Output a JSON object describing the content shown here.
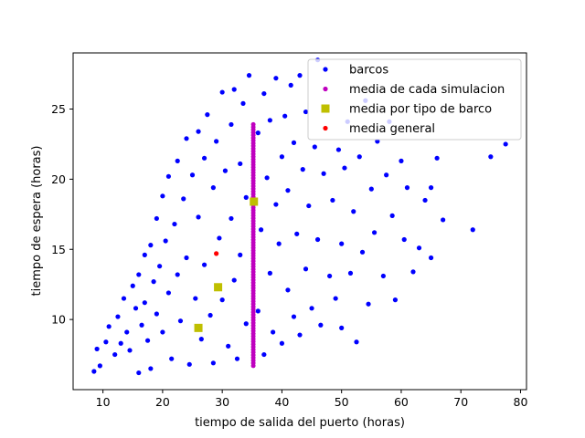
{
  "chart_data": {
    "type": "scatter",
    "title": "",
    "xlabel": "tiempo de salida del puerto (horas)",
    "ylabel": "tiempo de espera (horas)",
    "xlim": [
      5,
      81
    ],
    "ylim": [
      5,
      29
    ],
    "xticks": [
      10,
      20,
      30,
      40,
      50,
      60,
      70,
      80
    ],
    "yticks": [
      10,
      15,
      20,
      25
    ],
    "grid": false,
    "legend_position": "top-right",
    "legend": [
      {
        "label": "barcos",
        "marker": "dot",
        "color": "#0000ff"
      },
      {
        "label": "media de cada simulacion",
        "marker": "dot",
        "color": "#bf00bf"
      },
      {
        "label": "media por tipo de barco",
        "marker": "square",
        "color": "#bfbf00"
      },
      {
        "label": "media general",
        "marker": "dot",
        "color": "#ff0000"
      }
    ],
    "series": [
      {
        "name": "barcos",
        "color": "#0000ff",
        "note": "dense cloud of ~3000 points; representative sample below",
        "points": [
          [
            8.5,
            6.3
          ],
          [
            9,
            7.9
          ],
          [
            9.5,
            6.7
          ],
          [
            10.5,
            8.4
          ],
          [
            11,
            9.5
          ],
          [
            12,
            7.5
          ],
          [
            12.5,
            10.2
          ],
          [
            13,
            8.3
          ],
          [
            13.5,
            11.5
          ],
          [
            14,
            9.1
          ],
          [
            14.5,
            7.8
          ],
          [
            15,
            12.4
          ],
          [
            15.5,
            10.8
          ],
          [
            16,
            6.2
          ],
          [
            16,
            13.2
          ],
          [
            16.5,
            9.6
          ],
          [
            17,
            14.6
          ],
          [
            17,
            11.2
          ],
          [
            17.5,
            8.5
          ],
          [
            18,
            15.3
          ],
          [
            18,
            6.5
          ],
          [
            18.5,
            12.7
          ],
          [
            19,
            10.4
          ],
          [
            19,
            17.2
          ],
          [
            19.5,
            13.8
          ],
          [
            20,
            9.1
          ],
          [
            20,
            18.8
          ],
          [
            20.5,
            15.6
          ],
          [
            21,
            11.9
          ],
          [
            21,
            20.2
          ],
          [
            21.5,
            7.2
          ],
          [
            22,
            16.8
          ],
          [
            22.5,
            13.2
          ],
          [
            22.5,
            21.3
          ],
          [
            23,
            9.9
          ],
          [
            23.5,
            18.6
          ],
          [
            24,
            22.9
          ],
          [
            24,
            14.4
          ],
          [
            24.5,
            6.8
          ],
          [
            25,
            20.3
          ],
          [
            25.5,
            11.5
          ],
          [
            26,
            17.3
          ],
          [
            26,
            23.4
          ],
          [
            26.5,
            8.6
          ],
          [
            27,
            21.5
          ],
          [
            27,
            13.9
          ],
          [
            27.5,
            24.6
          ],
          [
            28,
            10.3
          ],
          [
            28.5,
            19.4
          ],
          [
            28.5,
            6.9
          ],
          [
            29,
            22.7
          ],
          [
            29.5,
            15.8
          ],
          [
            30,
            26.2
          ],
          [
            30,
            11.4
          ],
          [
            30.5,
            20.6
          ],
          [
            31,
            8.1
          ],
          [
            31.5,
            23.9
          ],
          [
            31.5,
            17.2
          ],
          [
            32,
            12.8
          ],
          [
            32,
            26.4
          ],
          [
            32.5,
            7.2
          ],
          [
            33,
            21.1
          ],
          [
            33,
            14.6
          ],
          [
            33.5,
            25.4
          ],
          [
            34,
            9.7
          ],
          [
            34,
            18.7
          ],
          [
            34.5,
            27.4
          ],
          [
            36,
            23.3
          ],
          [
            36,
            10.6
          ],
          [
            36.5,
            16.4
          ],
          [
            37,
            26.1
          ],
          [
            37,
            7.5
          ],
          [
            37.5,
            20.1
          ],
          [
            38,
            13.3
          ],
          [
            38,
            24.2
          ],
          [
            38.5,
            9.1
          ],
          [
            39,
            18.2
          ],
          [
            39,
            27.2
          ],
          [
            39.5,
            15.4
          ],
          [
            40,
            21.6
          ],
          [
            40,
            8.3
          ],
          [
            40.5,
            24.5
          ],
          [
            41,
            12.1
          ],
          [
            41,
            19.2
          ],
          [
            41.5,
            26.7
          ],
          [
            42,
            10.2
          ],
          [
            42,
            22.6
          ],
          [
            42.5,
            16.1
          ],
          [
            43,
            27.4
          ],
          [
            43,
            8.9
          ],
          [
            43.5,
            20.7
          ],
          [
            44,
            13.6
          ],
          [
            44,
            24.8
          ],
          [
            44.5,
            18.1
          ],
          [
            45,
            10.8
          ],
          [
            45.5,
            22.3
          ],
          [
            46,
            28.5
          ],
          [
            46,
            15.7
          ],
          [
            46.5,
            9.6
          ],
          [
            47,
            20.4
          ],
          [
            47.5,
            24.9
          ],
          [
            48,
            13.1
          ],
          [
            48.5,
            18.5
          ],
          [
            49,
            11.5
          ],
          [
            49.5,
            22.1
          ],
          [
            50,
            15.4
          ],
          [
            50,
            9.4
          ],
          [
            50.5,
            20.8
          ],
          [
            51,
            24.1
          ],
          [
            51.5,
            13.3
          ],
          [
            52,
            17.7
          ],
          [
            52.5,
            8.4
          ],
          [
            53,
            21.6
          ],
          [
            53.5,
            14.8
          ],
          [
            54,
            25.6
          ],
          [
            54.5,
            11.1
          ],
          [
            55,
            19.3
          ],
          [
            55.5,
            16.2
          ],
          [
            56,
            22.7
          ],
          [
            57,
            13.1
          ],
          [
            57.5,
            20.3
          ],
          [
            58,
            24.1
          ],
          [
            58.5,
            17.4
          ],
          [
            59,
            11.4
          ],
          [
            60,
            21.3
          ],
          [
            60.5,
            15.7
          ],
          [
            61,
            19.4
          ],
          [
            62,
            13.4
          ],
          [
            63,
            15.1
          ],
          [
            64,
            18.5
          ],
          [
            65,
            19.4
          ],
          [
            65,
            14.4
          ],
          [
            66,
            21.5
          ],
          [
            67,
            17.1
          ],
          [
            72,
            16.4
          ],
          [
            75,
            21.6
          ],
          [
            77.5,
            22.5
          ]
        ]
      },
      {
        "name": "media de cada simulacion",
        "color": "#bf00bf",
        "x": 35.2,
        "y_range": [
          6.7,
          23.9
        ]
      },
      {
        "name": "media por tipo de barco",
        "color": "#bfbf00",
        "points": [
          [
            26,
            9.4
          ],
          [
            29.3,
            12.3
          ],
          [
            35.3,
            18.4
          ]
        ]
      },
      {
        "name": "media general",
        "color": "#ff0000",
        "points": [
          [
            29,
            14.7
          ]
        ]
      }
    ]
  }
}
